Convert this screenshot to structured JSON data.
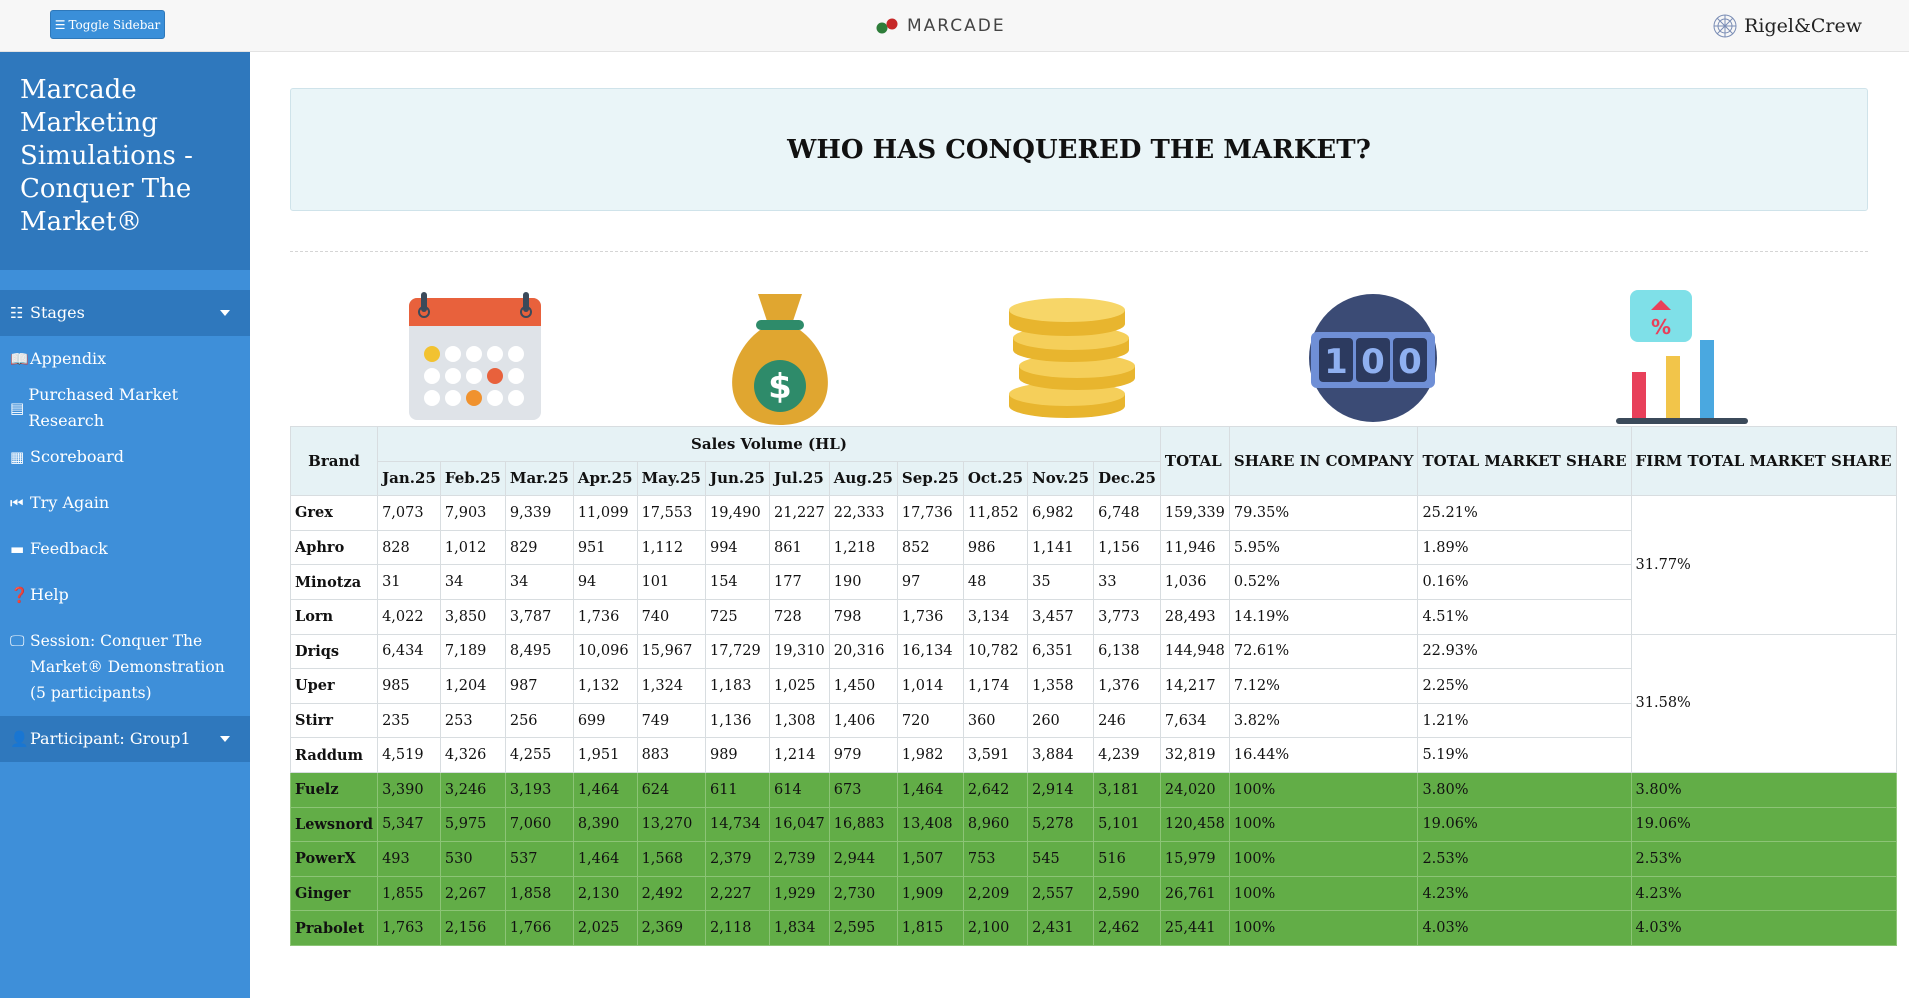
{
  "topbar": {
    "toggle_label": "Toggle Sidebar",
    "logo_text": "MARCADE",
    "partner_text": "Rigel&Crew"
  },
  "sidebar": {
    "title": "Marcade Marketing Simulations - Conquer The Market®",
    "items": [
      {
        "label": "Stages",
        "icon": "list-icon"
      },
      {
        "label": "Appendix",
        "icon": "book-icon"
      },
      {
        "label": "Purchased Market Research",
        "icon": "card-icon"
      },
      {
        "label": "Scoreboard",
        "icon": "calculator-icon"
      },
      {
        "label": "Try Again",
        "icon": "backward-icon"
      },
      {
        "label": "Feedback",
        "icon": "comment-icon"
      },
      {
        "label": "Help",
        "icon": "question-icon"
      },
      {
        "label": "Session: Conquer The Market® Demonstration (5 participants)",
        "icon": "chalkboard-icon"
      },
      {
        "label": "Participant: Group1",
        "icon": "user-icon"
      }
    ]
  },
  "banner": {
    "title": "WHO HAS CONQUERED THE MARKET?"
  },
  "table": {
    "headers": {
      "brand": "Brand",
      "sales_volume": "Sales Volume (HL)",
      "total": "TOTAL",
      "share_company": "SHARE IN COMPANY",
      "total_market_share": "TOTAL MARKET SHARE",
      "firm_total_market_share": "FIRM TOTAL MARKET SHARE",
      "months": [
        "Jan.25",
        "Feb.25",
        "Mar.25",
        "Apr.25",
        "May.25",
        "Jun.25",
        "Jul.25",
        "Aug.25",
        "Sep.25",
        "Oct.25",
        "Nov.25",
        "Dec.25"
      ]
    },
    "rows": [
      {
        "brand": "Grex",
        "m": [
          "7,073",
          "7,903",
          "9,339",
          "11,099",
          "17,553",
          "19,490",
          "21,227",
          "22,333",
          "17,736",
          "11,852",
          "6,982",
          "6,748"
        ],
        "total": "159,339",
        "share": "79.35%",
        "tms": "25.21%"
      },
      {
        "brand": "Aphro",
        "m": [
          "828",
          "1,012",
          "829",
          "951",
          "1,112",
          "994",
          "861",
          "1,218",
          "852",
          "986",
          "1,141",
          "1,156"
        ],
        "total": "11,946",
        "share": "5.95%",
        "tms": "1.89%"
      },
      {
        "brand": "Minotza",
        "m": [
          "31",
          "34",
          "34",
          "94",
          "101",
          "154",
          "177",
          "190",
          "97",
          "48",
          "35",
          "33"
        ],
        "total": "1,036",
        "share": "0.52%",
        "tms": "0.16%"
      },
      {
        "brand": "Lorn",
        "m": [
          "4,022",
          "3,850",
          "3,787",
          "1,736",
          "740",
          "725",
          "728",
          "798",
          "1,736",
          "3,134",
          "3,457",
          "3,773"
        ],
        "total": "28,493",
        "share": "14.19%",
        "tms": "4.51%"
      },
      {
        "brand": "Driqs",
        "m": [
          "6,434",
          "7,189",
          "8,495",
          "10,096",
          "15,967",
          "17,729",
          "19,310",
          "20,316",
          "16,134",
          "10,782",
          "6,351",
          "6,138"
        ],
        "total": "144,948",
        "share": "72.61%",
        "tms": "22.93%"
      },
      {
        "brand": "Uper",
        "m": [
          "985",
          "1,204",
          "987",
          "1,132",
          "1,324",
          "1,183",
          "1,025",
          "1,450",
          "1,014",
          "1,174",
          "1,358",
          "1,376"
        ],
        "total": "14,217",
        "share": "7.12%",
        "tms": "2.25%"
      },
      {
        "brand": "Stirr",
        "m": [
          "235",
          "253",
          "256",
          "699",
          "749",
          "1,136",
          "1,308",
          "1,406",
          "720",
          "360",
          "260",
          "246"
        ],
        "total": "7,634",
        "share": "3.82%",
        "tms": "1.21%"
      },
      {
        "brand": "Raddum",
        "m": [
          "4,519",
          "4,326",
          "4,255",
          "1,951",
          "883",
          "989",
          "1,214",
          "979",
          "1,982",
          "3,591",
          "3,884",
          "4,239"
        ],
        "total": "32,819",
        "share": "16.44%",
        "tms": "5.19%"
      },
      {
        "brand": "Fuelz",
        "m": [
          "3,390",
          "3,246",
          "3,193",
          "1,464",
          "624",
          "611",
          "614",
          "673",
          "1,464",
          "2,642",
          "2,914",
          "3,181"
        ],
        "total": "24,020",
        "share": "100%",
        "tms": "3.80%",
        "firm": "3.80%"
      },
      {
        "brand": "Lewsnord",
        "m": [
          "5,347",
          "5,975",
          "7,060",
          "8,390",
          "13,270",
          "14,734",
          "16,047",
          "16,883",
          "13,408",
          "8,960",
          "5,278",
          "5,101"
        ],
        "total": "120,458",
        "share": "100%",
        "tms": "19.06%",
        "firm": "19.06%"
      },
      {
        "brand": "PowerX",
        "m": [
          "493",
          "530",
          "537",
          "1,464",
          "1,568",
          "2,379",
          "2,739",
          "2,944",
          "1,507",
          "753",
          "545",
          "516"
        ],
        "total": "15,979",
        "share": "100%",
        "tms": "2.53%",
        "firm": "2.53%"
      },
      {
        "brand": "Ginger",
        "m": [
          "1,855",
          "2,267",
          "1,858",
          "2,130",
          "2,492",
          "2,227",
          "1,929",
          "2,730",
          "1,909",
          "2,209",
          "2,557",
          "2,590"
        ],
        "total": "26,761",
        "share": "100%",
        "tms": "4.23%",
        "firm": "4.23%"
      },
      {
        "brand": "Prabolet",
        "m": [
          "1,763",
          "2,156",
          "1,766",
          "2,025",
          "2,369",
          "2,118",
          "1,834",
          "2,595",
          "1,815",
          "2,100",
          "2,431",
          "2,462"
        ],
        "total": "25,441",
        "share": "100%",
        "tms": "4.03%",
        "firm": "4.03%"
      }
    ],
    "firm_groups": [
      "31.77%",
      "31.58%"
    ]
  },
  "colors": {
    "sidebar_bg": "#3e8fd9",
    "sidebar_dark": "#2f78bd",
    "highlight_row": "#62ad47",
    "header_bg": "#e6f2f5"
  },
  "icons": [
    "calendar-icon",
    "money-bag-icon",
    "coin-stack-icon",
    "counter-100-icon",
    "bar-chart-percent-icon"
  ]
}
